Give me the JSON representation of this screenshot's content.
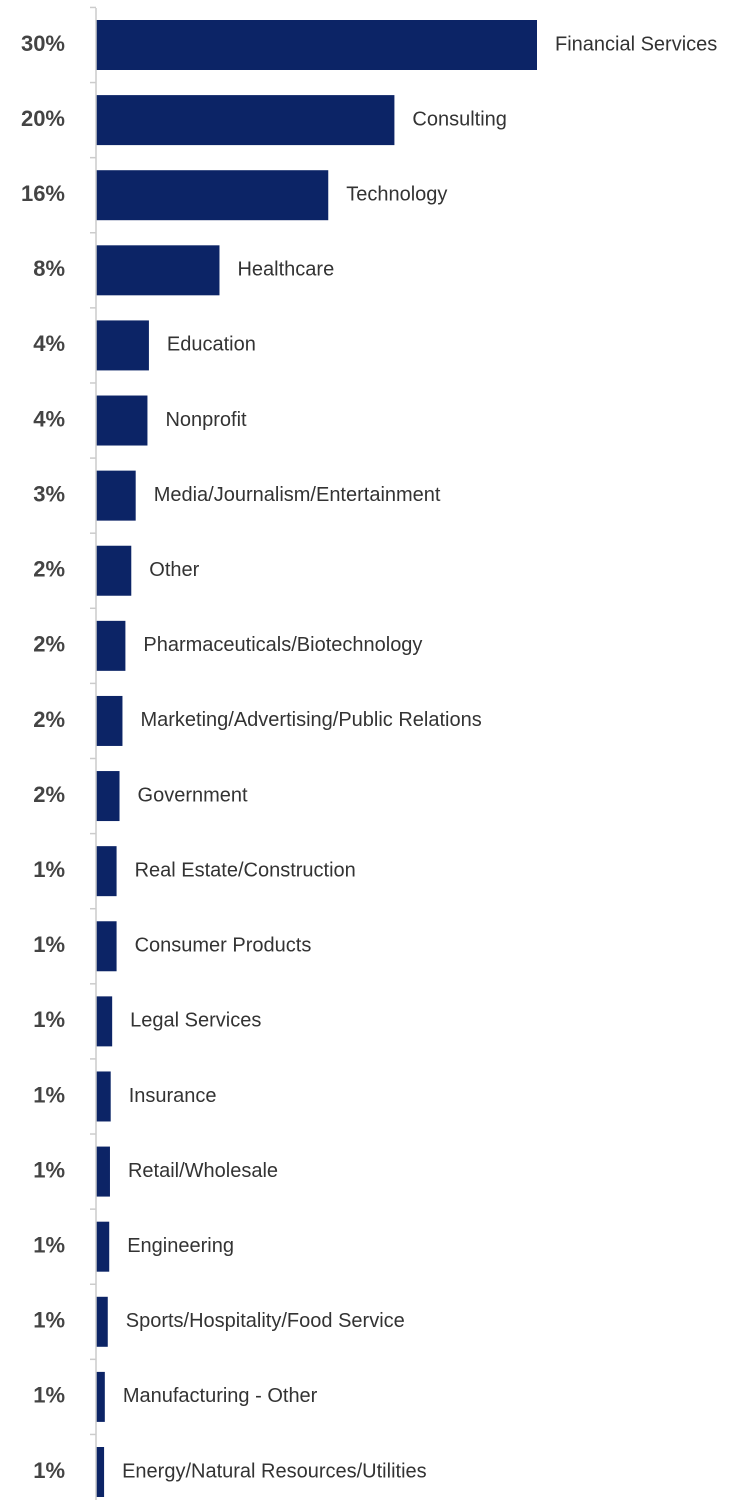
{
  "chart_data": {
    "type": "barh",
    "categories": [
      "Financial Services",
      "Consulting",
      "Technology",
      "Healthcare",
      "Education",
      "Nonprofit",
      "Media/Journalism/Entertainment",
      "Other",
      "Pharmaceuticals/Biotechnology",
      "Marketing/Advertising/Public Relations",
      "Government",
      "Real Estate/Construction",
      "Consumer Products",
      "Legal Services",
      "Insurance",
      "Retail/Wholesale",
      "Engineering",
      "Sports/Hospitality/Food Service",
      "Manufacturing - Other",
      "Energy/Natural Resources/Utilities"
    ],
    "values": [
      30,
      20.3,
      15.8,
      8.4,
      3.6,
      3.5,
      2.7,
      2.4,
      2.0,
      1.8,
      1.6,
      1.4,
      1.4,
      1.1,
      1.0,
      0.95,
      0.9,
      0.8,
      0.6,
      0.55
    ],
    "value_labels": [
      "30%",
      "20%",
      "16%",
      "8%",
      "4%",
      "4%",
      "3%",
      "2%",
      "2%",
      "2%",
      "2%",
      "1%",
      "1%",
      "1%",
      "1%",
      "1%",
      "1%",
      "1%",
      "1%",
      "1%"
    ],
    "color": "#0c2466",
    "xlim": [
      0,
      30
    ]
  }
}
